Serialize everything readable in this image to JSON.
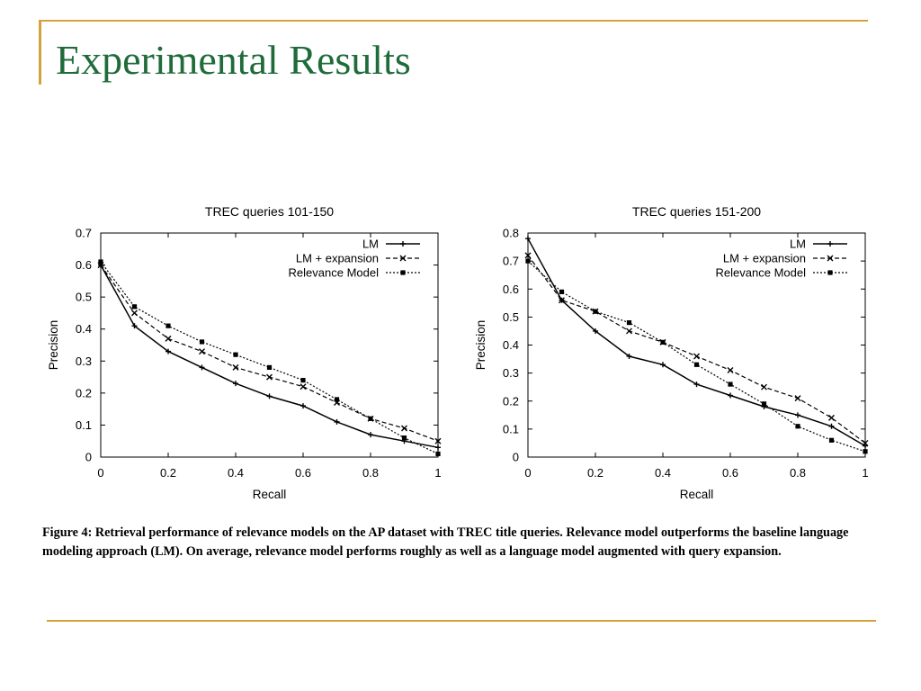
{
  "slide": {
    "title": "Experimental Results",
    "caption": "Figure 4: Retrieval performance of relevance models on the AP dataset with TREC title queries. Relevance model outperforms the baseline language modeling approach (LM). On average, relevance model performs roughly as well as a language model augmented with query expansion."
  },
  "colors": {
    "title": "#1f6b3a",
    "rule": "#d4a23a"
  },
  "chart_data": [
    {
      "type": "line",
      "title": "TREC queries 101-150",
      "xlabel": "Recall",
      "ylabel": "Precision",
      "xlim": [
        0,
        1
      ],
      "ylim": [
        0,
        0.7
      ],
      "xticks": [
        "0",
        "0.2",
        "0.4",
        "0.6",
        "0.8",
        "1"
      ],
      "yticks": [
        "0",
        "0.1",
        "0.2",
        "0.3",
        "0.4",
        "0.5",
        "0.6",
        "0.7"
      ],
      "grid": false,
      "legend_position": "top-right",
      "x": [
        0,
        0.1,
        0.2,
        0.3,
        0.4,
        0.5,
        0.6,
        0.7,
        0.8,
        0.9,
        1.0
      ],
      "series": [
        {
          "name": "LM",
          "marker": "plus",
          "dash": "solid",
          "values": [
            0.6,
            0.41,
            0.33,
            0.28,
            0.23,
            0.19,
            0.16,
            0.11,
            0.07,
            0.05,
            0.03
          ]
        },
        {
          "name": "LM + expansion",
          "marker": "cross",
          "dash": "dashed",
          "values": [
            0.6,
            0.45,
            0.37,
            0.33,
            0.28,
            0.25,
            0.22,
            0.17,
            0.12,
            0.09,
            0.05
          ]
        },
        {
          "name": "Relevance Model",
          "marker": "square",
          "dash": "dotted",
          "values": [
            0.61,
            0.47,
            0.41,
            0.36,
            0.32,
            0.28,
            0.24,
            0.18,
            0.12,
            0.06,
            0.01
          ]
        }
      ]
    },
    {
      "type": "line",
      "title": "TREC queries 151-200",
      "xlabel": "Recall",
      "ylabel": "Precision",
      "xlim": [
        0,
        1
      ],
      "ylim": [
        0,
        0.8
      ],
      "xticks": [
        "0",
        "0.2",
        "0.4",
        "0.6",
        "0.8",
        "1"
      ],
      "yticks": [
        "0",
        "0.1",
        "0.2",
        "0.3",
        "0.4",
        "0.5",
        "0.6",
        "0.7",
        "0.8"
      ],
      "grid": false,
      "legend_position": "top-right",
      "x": [
        0,
        0.1,
        0.2,
        0.3,
        0.4,
        0.5,
        0.6,
        0.7,
        0.8,
        0.9,
        1.0
      ],
      "series": [
        {
          "name": "LM",
          "marker": "plus",
          "dash": "solid",
          "values": [
            0.78,
            0.56,
            0.45,
            0.36,
            0.33,
            0.26,
            0.22,
            0.18,
            0.15,
            0.11,
            0.04
          ]
        },
        {
          "name": "LM + expansion",
          "marker": "cross",
          "dash": "dashed",
          "values": [
            0.72,
            0.56,
            0.52,
            0.45,
            0.41,
            0.36,
            0.31,
            0.25,
            0.21,
            0.14,
            0.05
          ]
        },
        {
          "name": "Relevance Model",
          "marker": "square",
          "dash": "dotted",
          "values": [
            0.7,
            0.59,
            0.52,
            0.48,
            0.41,
            0.33,
            0.26,
            0.19,
            0.11,
            0.06,
            0.02
          ]
        }
      ]
    }
  ]
}
